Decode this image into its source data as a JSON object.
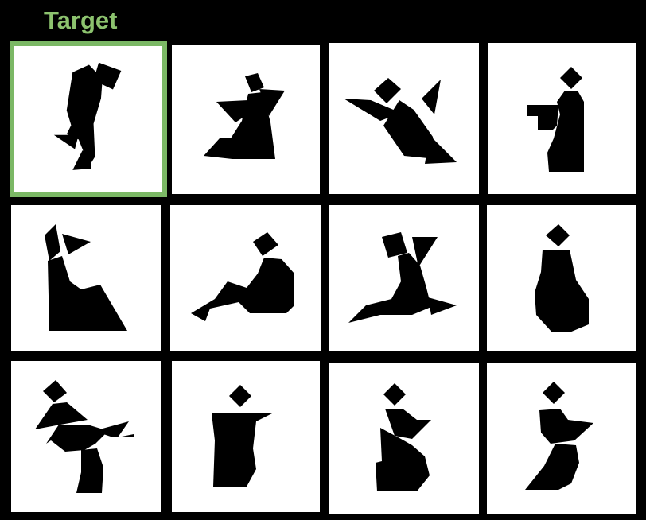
{
  "header": {
    "title": "Target"
  },
  "colors": {
    "background": "#000000",
    "title": "#8cc26e",
    "selected_border": "#7bb865",
    "card": "#ffffff",
    "figure": "#000000"
  },
  "grid": {
    "rows": 3,
    "columns": 4,
    "selected_index": 0,
    "cards": [
      {
        "figure": "tangram-figure-standing-kicking",
        "selected": true
      },
      {
        "figure": "tangram-figure-sitting-arms-raised",
        "selected": false
      },
      {
        "figure": "tangram-figure-diving",
        "selected": false
      },
      {
        "figure": "tangram-figure-standing-holding",
        "selected": false
      },
      {
        "figure": "tangram-figure-kneeling-bow",
        "selected": false
      },
      {
        "figure": "tangram-figure-reclining",
        "selected": false
      },
      {
        "figure": "tangram-figure-sitting-leaning",
        "selected": false
      },
      {
        "figure": "tangram-figure-bottle",
        "selected": false
      },
      {
        "figure": "tangram-figure-running",
        "selected": false
      },
      {
        "figure": "tangram-figure-standing-block",
        "selected": false
      },
      {
        "figure": "tangram-figure-kneeling",
        "selected": false
      },
      {
        "figure": "tangram-figure-kneeling-reaching",
        "selected": false
      }
    ]
  }
}
